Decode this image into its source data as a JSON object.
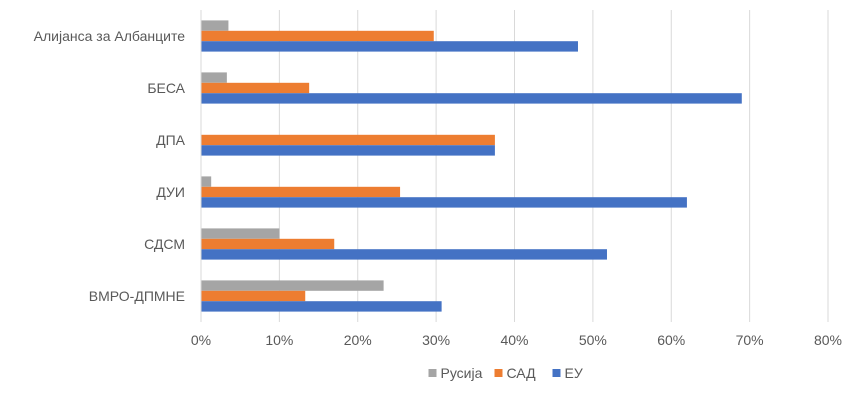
{
  "chart_data": {
    "type": "bar",
    "orientation": "horizontal",
    "categories": [
      "Алијанса за Албанците",
      "БЕСА",
      "ДПА",
      "ДУИ",
      "СДСМ",
      "ВМРО-ДПМНЕ"
    ],
    "series": [
      {
        "name": "Русија",
        "color": "#a5a5a5",
        "values": [
          3.5,
          3.3,
          0,
          1.3,
          10.0,
          23.3
        ]
      },
      {
        "name": "САД",
        "color": "#ed7d31",
        "values": [
          29.7,
          13.8,
          37.5,
          25.4,
          17.0,
          13.3
        ]
      },
      {
        "name": "ЕУ",
        "color": "#4472c4",
        "values": [
          48.1,
          69.0,
          37.5,
          62.0,
          51.8,
          30.7
        ]
      }
    ],
    "x_ticks": [
      "0%",
      "10%",
      "20%",
      "30%",
      "40%",
      "50%",
      "60%",
      "70%",
      "80%"
    ],
    "xlim": [
      0,
      80
    ],
    "grid": true,
    "legend_position": "bottom"
  }
}
